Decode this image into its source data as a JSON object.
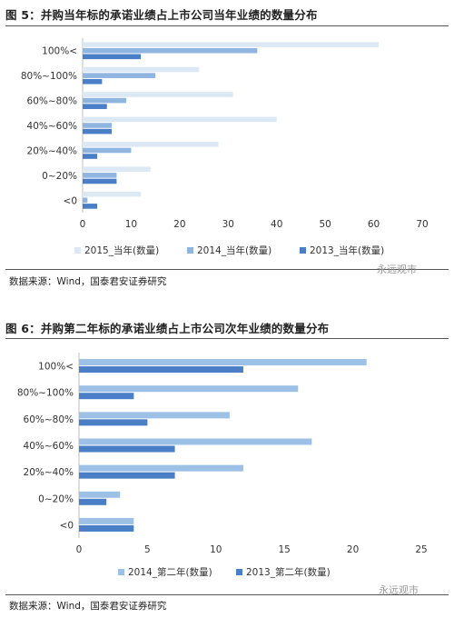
{
  "fig5": {
    "title": "图 5：并购当年标的承诺业绩占上市公司当年业绩的数量分布",
    "source": "数据来源：Wind，国泰君安证券研究",
    "watermark": "永远观市"
  },
  "fig6": {
    "title": "图 6：并购第二年标的承诺业绩占上市公司次年业绩的数量分布",
    "source": "数据来源：Wind，国泰君安证券研究",
    "watermark": "永远观市"
  },
  "colors": {
    "light": "#dde8f5",
    "mid": "#8fb5e0",
    "dark": "#4a7ec6",
    "c2014_fig6": "#9dc0e6",
    "c2013_fig6": "#4a7ec6"
  },
  "chart_data": [
    {
      "type": "bar",
      "orientation": "horizontal",
      "categories": [
        "100%<",
        "80%~100%",
        "60%~80%",
        "40%~60%",
        "20%~40%",
        "0~20%",
        "<0"
      ],
      "series": [
        {
          "name": "2015_当年(数量)",
          "values": [
            61,
            24,
            31,
            40,
            28,
            14,
            12
          ]
        },
        {
          "name": "2014_当年(数量)",
          "values": [
            36,
            15,
            9,
            6,
            10,
            7,
            1
          ]
        },
        {
          "name": "2013_当年(数量)",
          "values": [
            12,
            4,
            5,
            6,
            3,
            7,
            3
          ]
        }
      ],
      "xticks": [
        "0",
        "10",
        "20",
        "30",
        "40",
        "50",
        "60",
        "70"
      ],
      "xlim": [
        0,
        70
      ],
      "legend": "bottom",
      "grid": false
    },
    {
      "type": "bar",
      "orientation": "horizontal",
      "categories": [
        "100%<",
        "80%~100%",
        "60%~80%",
        "40%~60%",
        "20%~40%",
        "0~20%",
        "<0"
      ],
      "series": [
        {
          "name": "2014_第二年(数量)",
          "values": [
            21,
            16,
            11,
            17,
            12,
            3,
            4
          ]
        },
        {
          "name": "2013_第二年(数量)",
          "values": [
            12,
            4,
            5,
            7,
            7,
            2,
            4
          ]
        }
      ],
      "xticks": [
        "0",
        "5",
        "10",
        "15",
        "20",
        "25"
      ],
      "xlim": [
        0,
        25
      ],
      "legend": "bottom",
      "grid": false
    }
  ]
}
